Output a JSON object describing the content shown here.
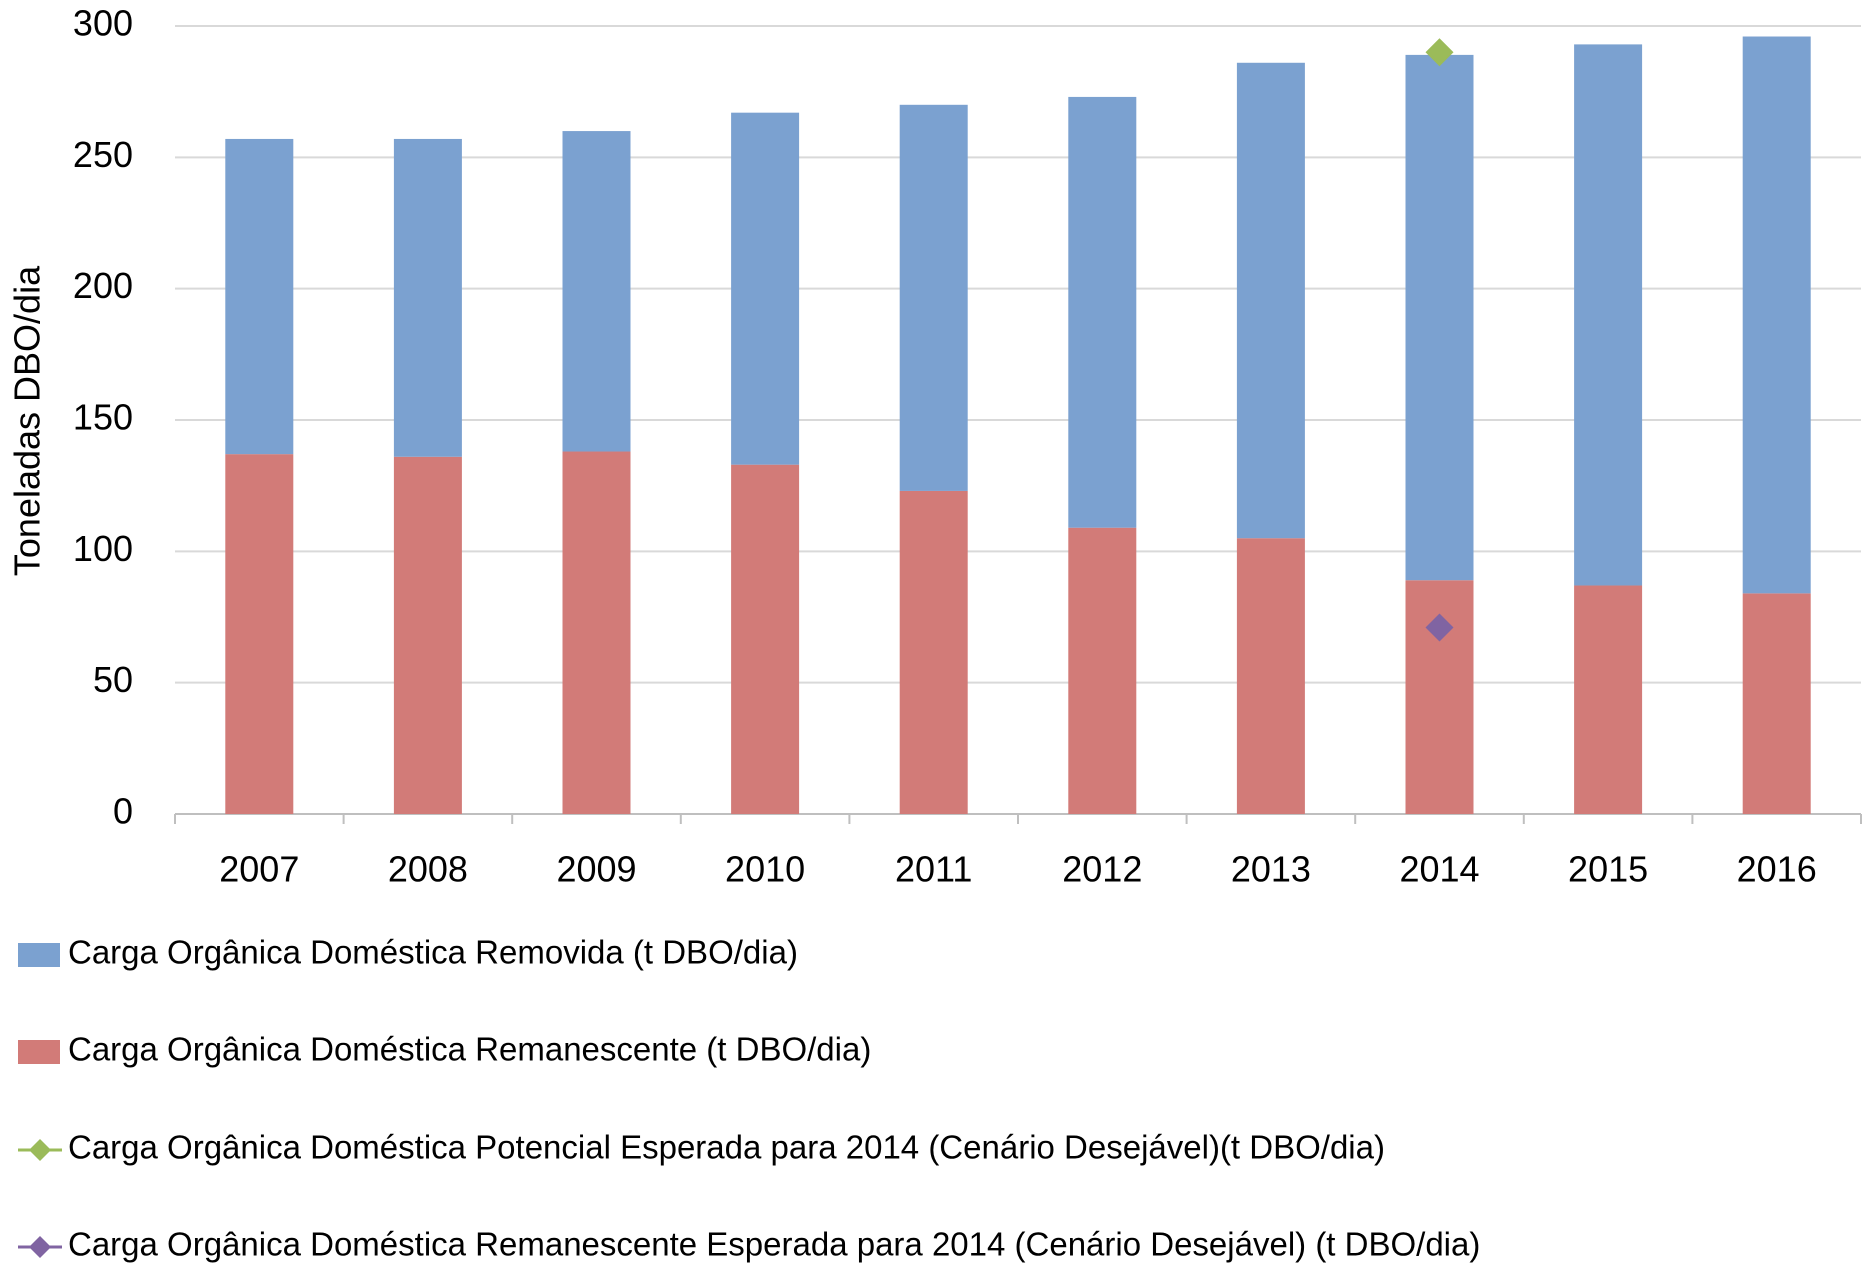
{
  "chart_data": {
    "type": "bar",
    "stacked": true,
    "y_label": "Toneladas DBO/dia",
    "categories": [
      "2007",
      "2008",
      "2009",
      "2010",
      "2011",
      "2012",
      "2013",
      "2014",
      "2015",
      "2016"
    ],
    "series": [
      {
        "name": "Carga Orgânica Doméstica Removida (t DBO/dia)",
        "color": "#7ba1d0",
        "type": "bar",
        "values": [
          120,
          121,
          122,
          134,
          147,
          164,
          181,
          200,
          206,
          212
        ]
      },
      {
        "name": "Carga Orgânica Doméstica Remanescente (t DBO/dia)",
        "color": "#d27b78",
        "type": "bar",
        "values": [
          137,
          136,
          138,
          133,
          123,
          109,
          105,
          89,
          87,
          84
        ]
      },
      {
        "name": "Carga Orgânica Doméstica Potencial  Esperada para 2014 (Cenário Desejável)(t DBO/dia)",
        "color": "#9bbb59",
        "type": "scatter",
        "values": [
          null,
          null,
          null,
          null,
          null,
          null,
          null,
          290,
          null,
          null
        ]
      },
      {
        "name": "Carga Orgânica Doméstica Remanescente Esperada para 2014 (Cenário Desejável) (t DBO/dia)",
        "color": "#8064a2",
        "type": "scatter",
        "values": [
          null,
          null,
          null,
          null,
          null,
          null,
          null,
          71,
          null,
          null
        ]
      }
    ],
    "ylim": [
      0,
      300
    ],
    "yticks": [
      0,
      50,
      100,
      150,
      200,
      250,
      300
    ],
    "grid": true,
    "legend": "bottom"
  }
}
